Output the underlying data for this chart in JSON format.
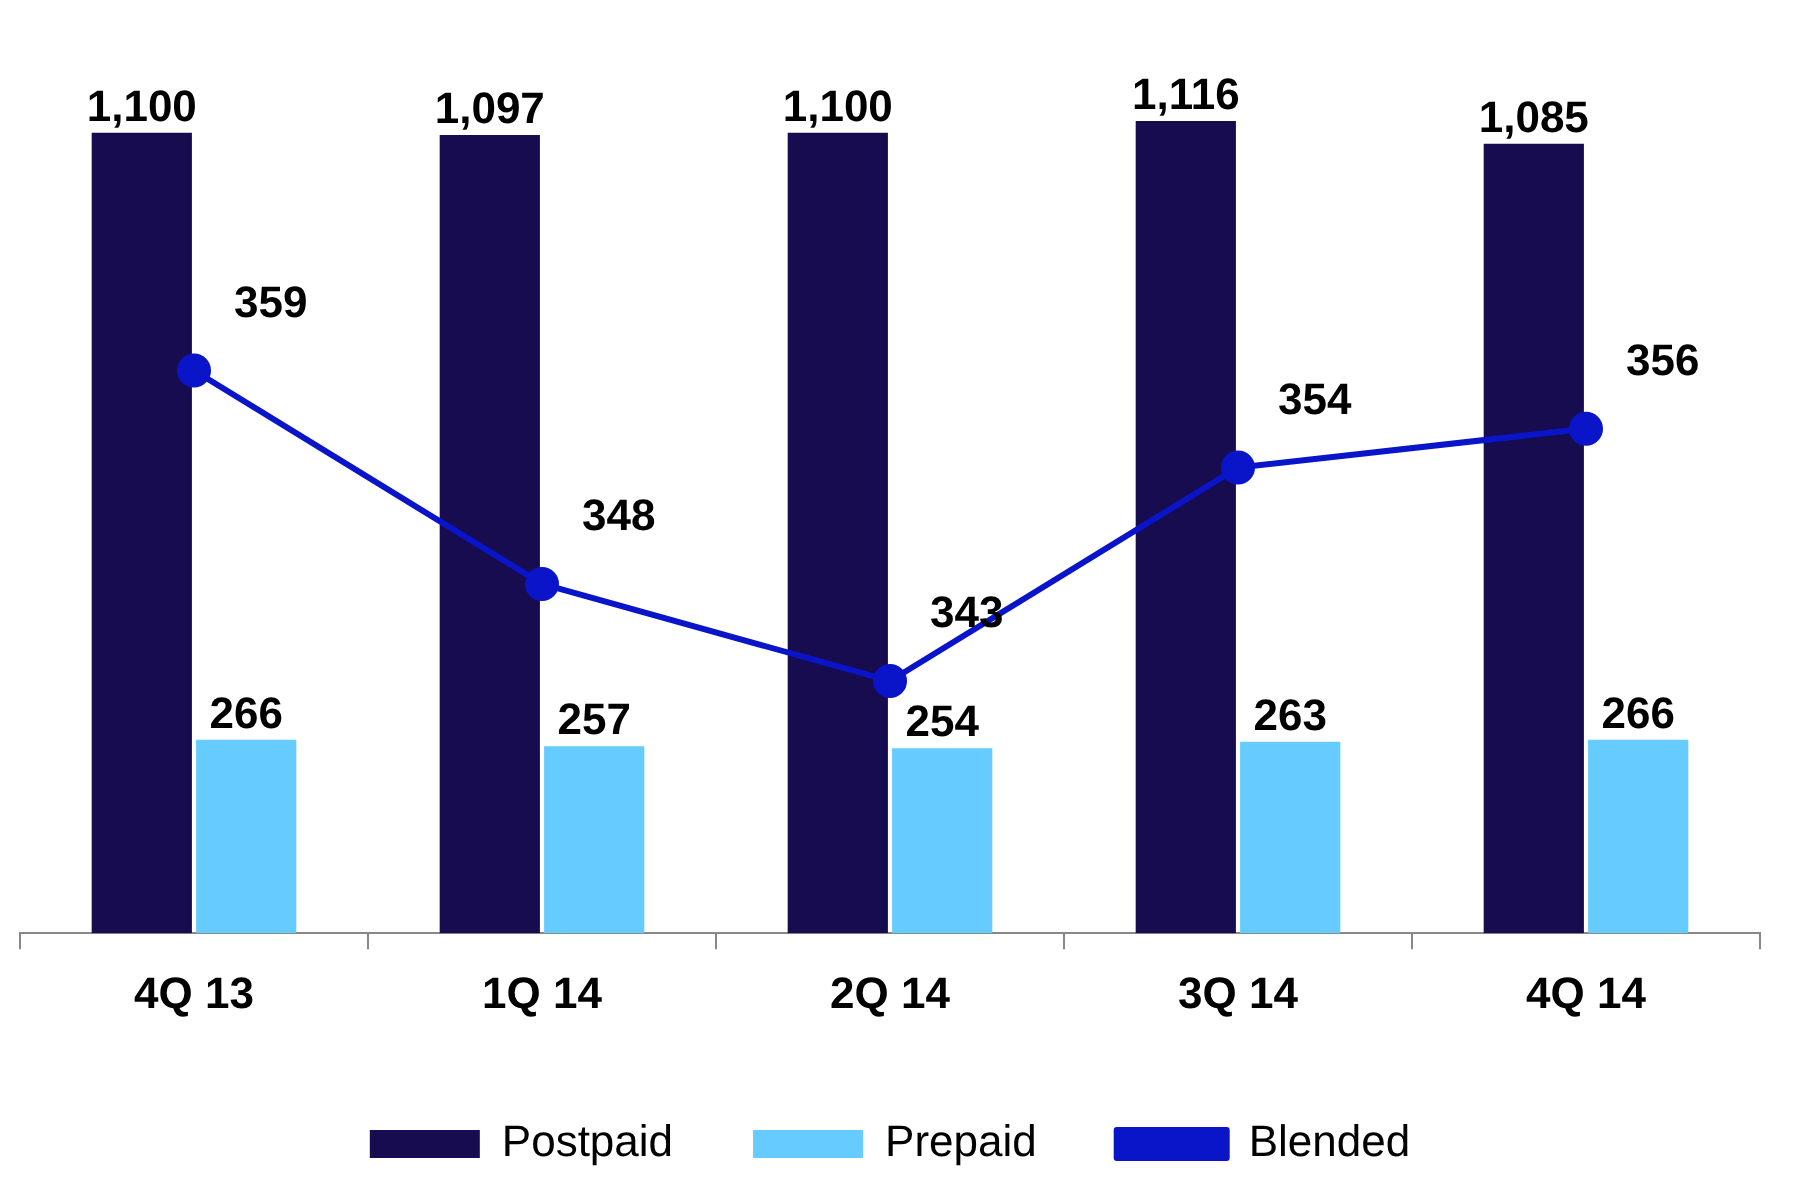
{
  "chart_data": {
    "type": "bar",
    "categories": [
      "4Q 13",
      "1Q 14",
      "2Q 14",
      "3Q 14",
      "4Q 14"
    ],
    "series": [
      {
        "name": "Postpaid",
        "color": "#180c50",
        "values": [
          1100,
          1097,
          1100,
          1116,
          1085
        ],
        "value_labels": [
          "1,100",
          "1,097",
          "1,100",
          "1,116",
          "1,085"
        ]
      },
      {
        "name": "Prepaid",
        "color": "#66ccff",
        "values": [
          266,
          257,
          254,
          263,
          266
        ]
      },
      {
        "name": "Blended",
        "type": "line",
        "axis": "y2",
        "color": "#0a14c8",
        "values": [
          359,
          348,
          343,
          354,
          356
        ]
      }
    ],
    "tick_labels": "x",
    "grid": false,
    "legend": "bottom",
    "marker": "circle",
    "data_labels": true
  }
}
